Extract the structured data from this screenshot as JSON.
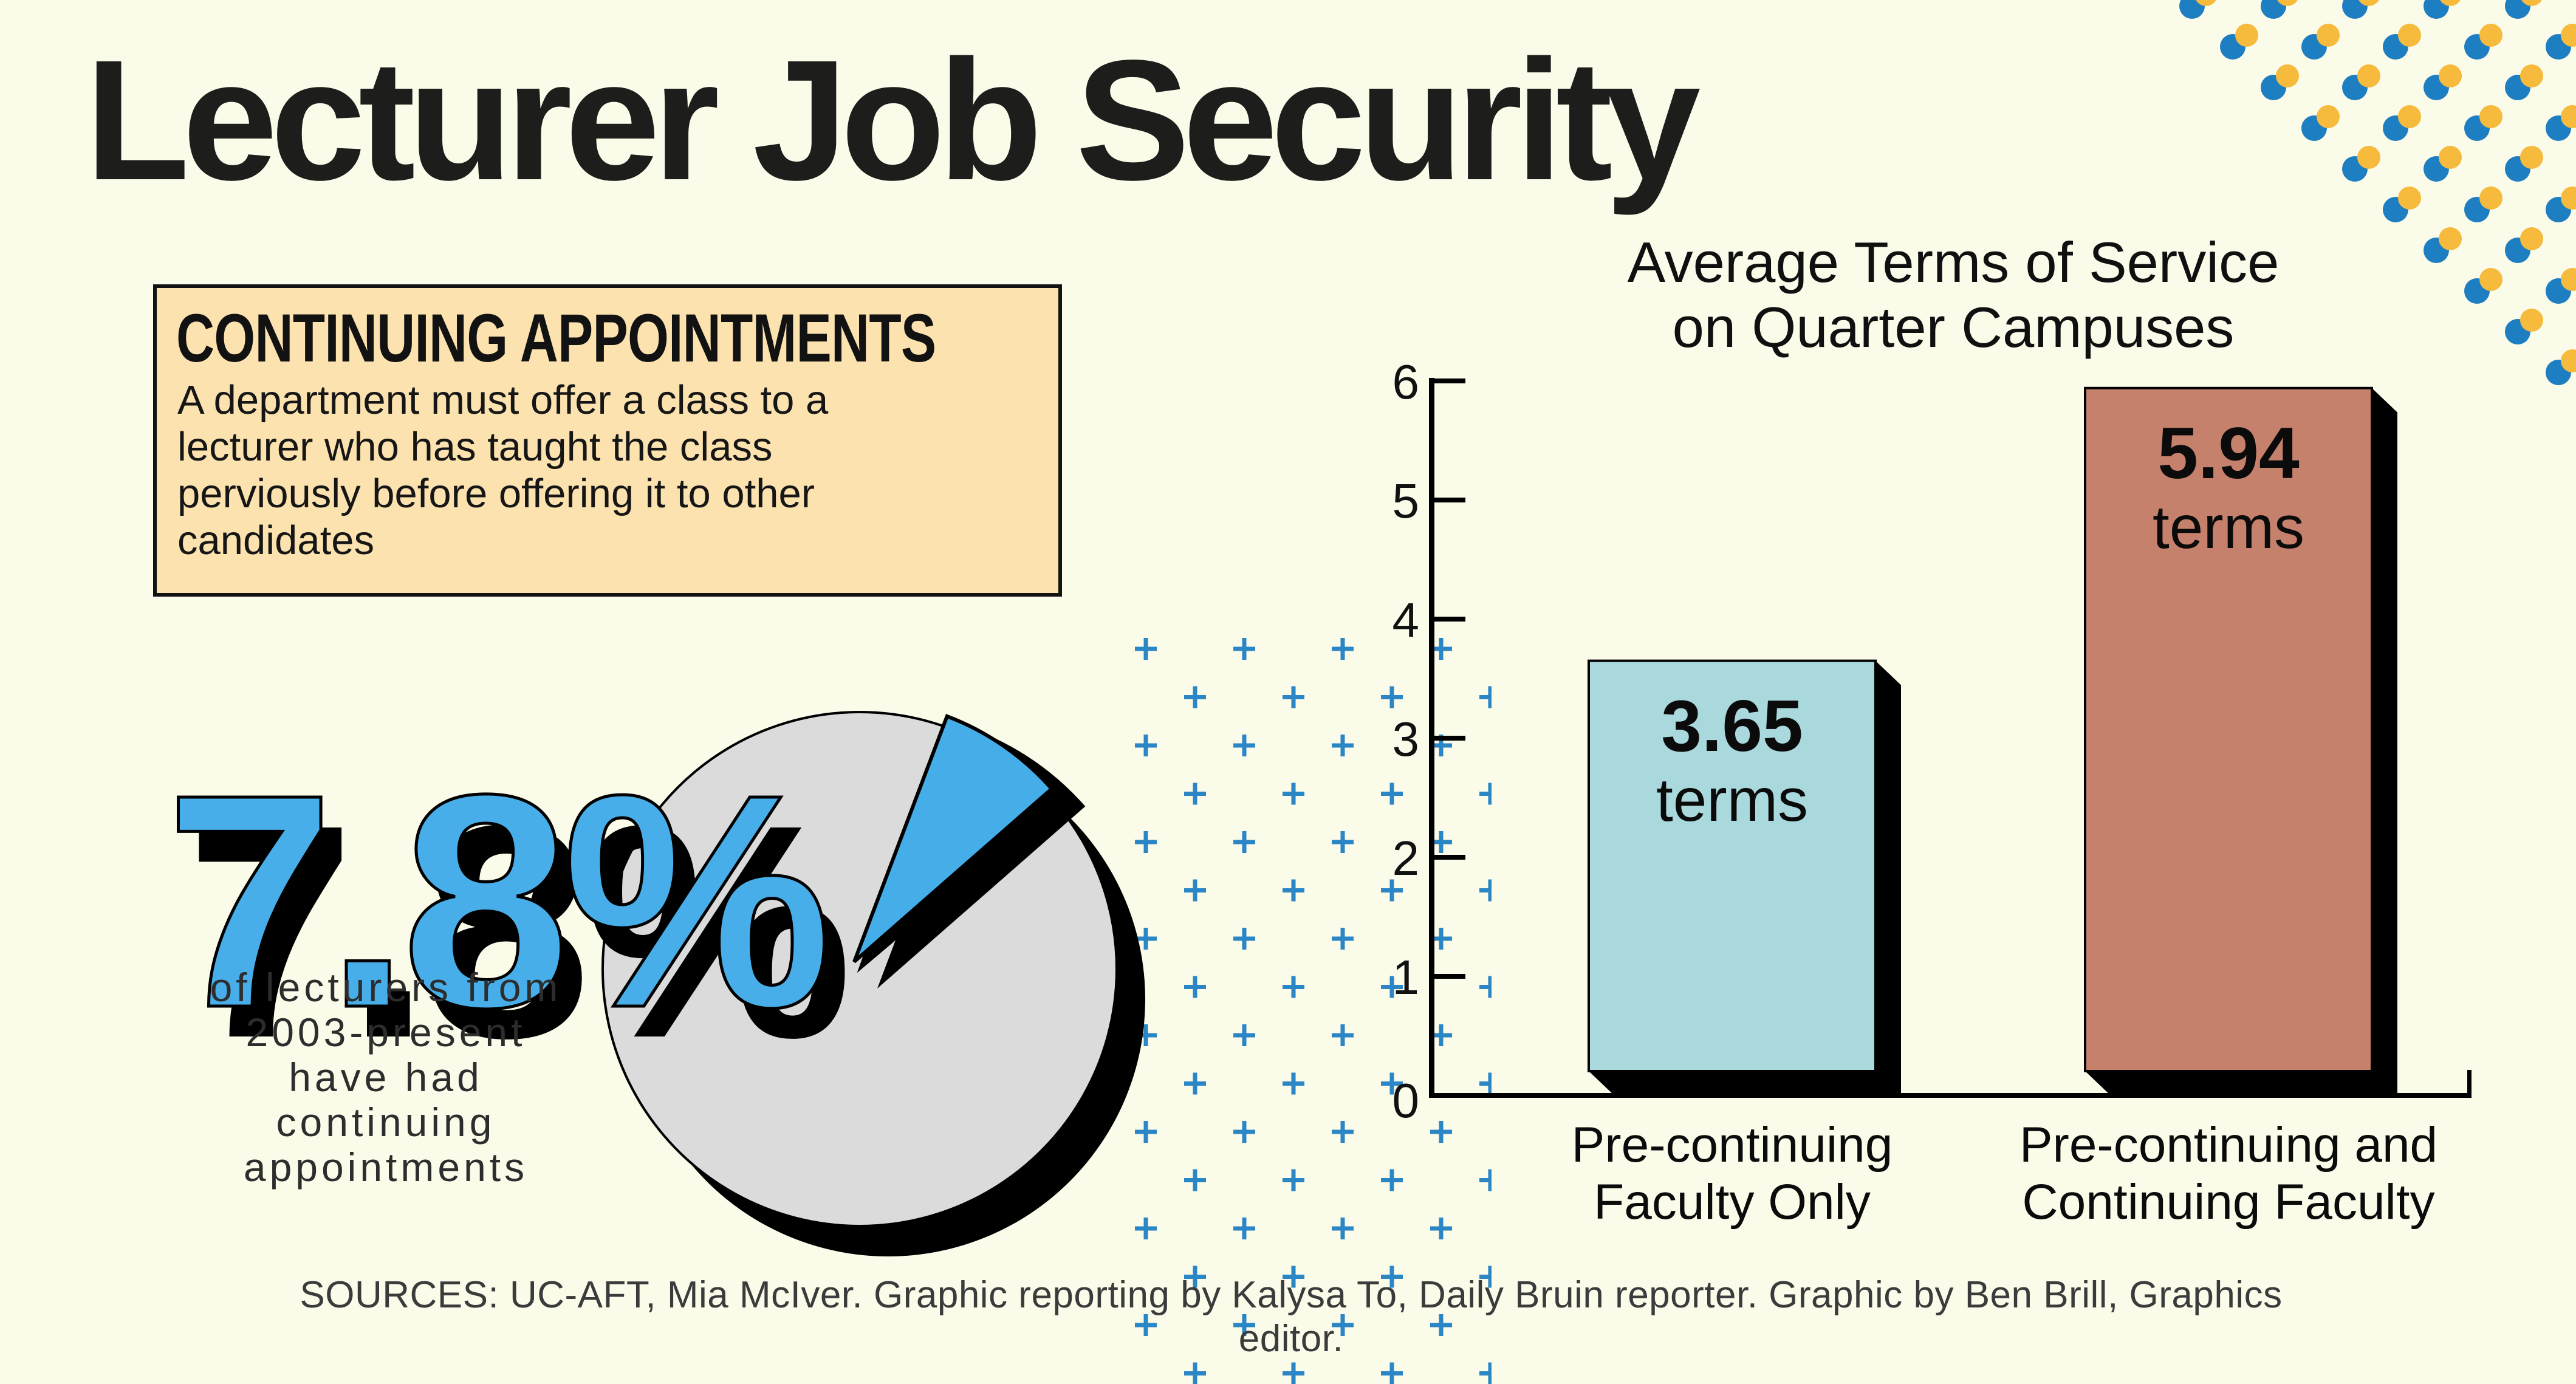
{
  "page": {
    "background": "#FBFBEA"
  },
  "title": "Lecturer Job Security",
  "info_box": {
    "heading": "CONTINUING APPOINTMENTS",
    "body_lines": [
      "A department must offer a class to a",
      "lecturer who has taught the class",
      "perviously before offering it to other",
      "candidates"
    ],
    "bg_color": "#FBE2AE"
  },
  "stat": {
    "value": "7.8%",
    "color": "#47AEE9",
    "caption_lines": [
      "of lecturers from",
      "2003-present",
      "have had",
      "continuing",
      "appointments"
    ]
  },
  "pie": {
    "slice_pct": 7.8,
    "slice_color": "#45AEE9",
    "rest_color": "#DBDBDB",
    "outline_color": "#000000"
  },
  "chart_data": {
    "type": "bar",
    "title_lines": [
      "Average Terms of Service",
      "on Quarter Campuses"
    ],
    "categories": [
      [
        "Pre-continuing",
        "Faculty Only"
      ],
      [
        "Pre-continuing and",
        "Continuing Faculty"
      ]
    ],
    "values": [
      3.65,
      5.94
    ],
    "value_labels": [
      "3.65",
      "5.94"
    ],
    "value_unit": "terms",
    "bar_colors": [
      "#A9D8DD",
      "#C5816B"
    ],
    "ylabel": "",
    "xlabel": "",
    "ylim": [
      0,
      6
    ],
    "yticks": [
      0,
      1,
      2,
      3,
      4,
      5,
      6
    ],
    "grid": false,
    "legend": false
  },
  "sources": {
    "line1": "SOURCES: UC-AFT, Mia McIver. Graphic reporting by Kalysa To, Daily Bruin reporter. Graphic by Ben Brill, Graphics",
    "line2": "editor."
  },
  "decor": {
    "plus_color": "#2B86C5",
    "dot_blue": "#1E7EC2",
    "dot_yellow": "#F6BA3C"
  }
}
